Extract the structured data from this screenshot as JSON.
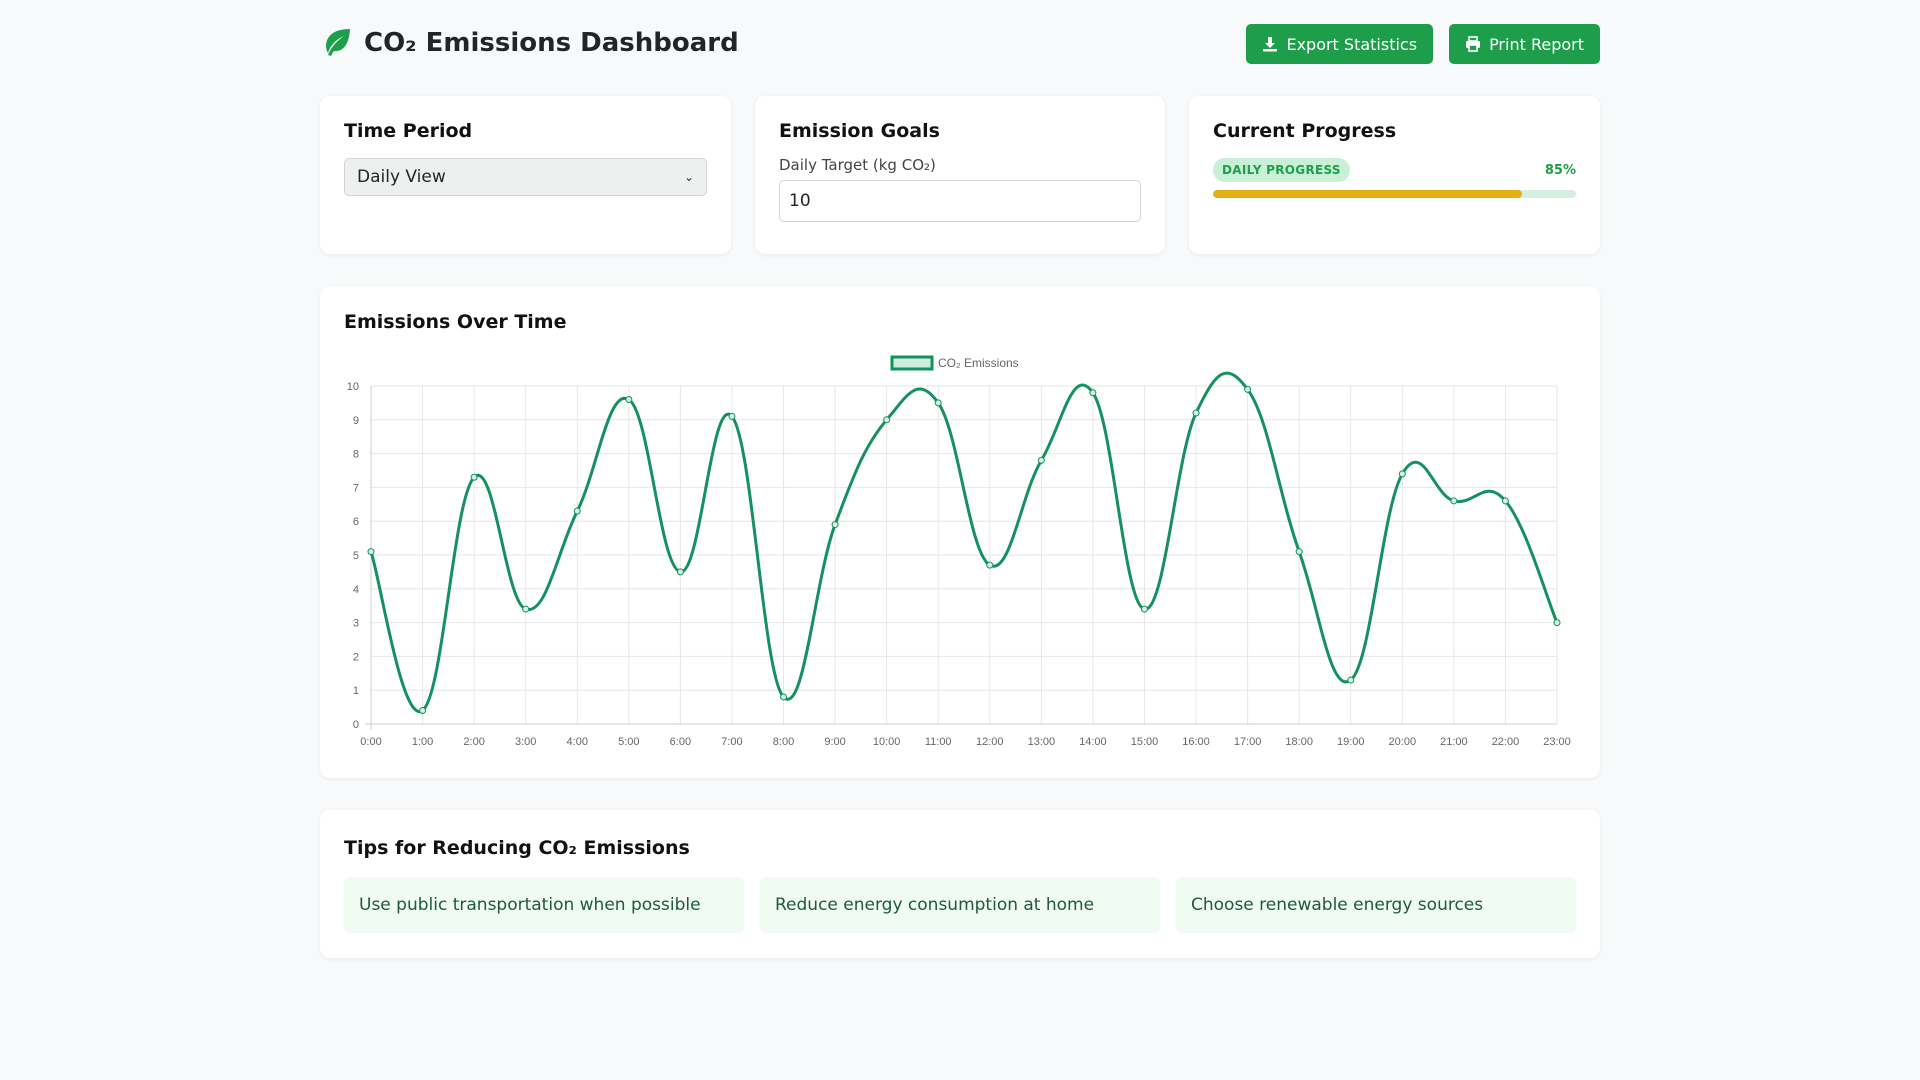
{
  "header": {
    "title": "CO₂ Emissions Dashboard",
    "export_label": "Export Statistics",
    "print_label": "Print Report"
  },
  "time_period": {
    "title": "Time Period",
    "selected": "Daily View"
  },
  "goals": {
    "title": "Emission Goals",
    "label": "Daily Target (kg CO₂)",
    "value": "10"
  },
  "progress": {
    "title": "Current Progress",
    "badge": "DAILY PROGRESS",
    "percent_label": "85%",
    "value": 0.85
  },
  "chart_section": {
    "title": "Emissions Over Time"
  },
  "colors": {
    "accent": "#1e9e4a",
    "line": "#15905f",
    "progress_fill": "#e5b014"
  },
  "chart_data": {
    "type": "line",
    "x": [
      "0:00",
      "1:00",
      "2:00",
      "3:00",
      "4:00",
      "5:00",
      "6:00",
      "7:00",
      "8:00",
      "9:00",
      "10:00",
      "11:00",
      "12:00",
      "13:00",
      "14:00",
      "15:00",
      "16:00",
      "17:00",
      "18:00",
      "19:00",
      "20:00",
      "21:00",
      "22:00",
      "23:00"
    ],
    "series": [
      {
        "name": "CO₂ Emissions",
        "values": [
          5.1,
          0.4,
          7.3,
          3.4,
          6.3,
          9.6,
          4.5,
          9.1,
          0.8,
          5.9,
          9.0,
          9.5,
          4.7,
          7.8,
          9.8,
          3.4,
          9.2,
          9.9,
          5.1,
          1.3,
          7.4,
          6.6,
          6.6,
          3.0
        ]
      }
    ],
    "ylim": [
      0,
      10
    ],
    "yticks": [
      0,
      1,
      2,
      3,
      4,
      5,
      6,
      7,
      8,
      9,
      10
    ],
    "xlabel": "",
    "ylabel": "",
    "grid": true,
    "legend": "top-center"
  },
  "tips": {
    "title": "Tips for Reducing CO₂ Emissions",
    "items": [
      "Use public transportation when possible",
      "Reduce energy consumption at home",
      "Choose renewable energy sources"
    ]
  }
}
